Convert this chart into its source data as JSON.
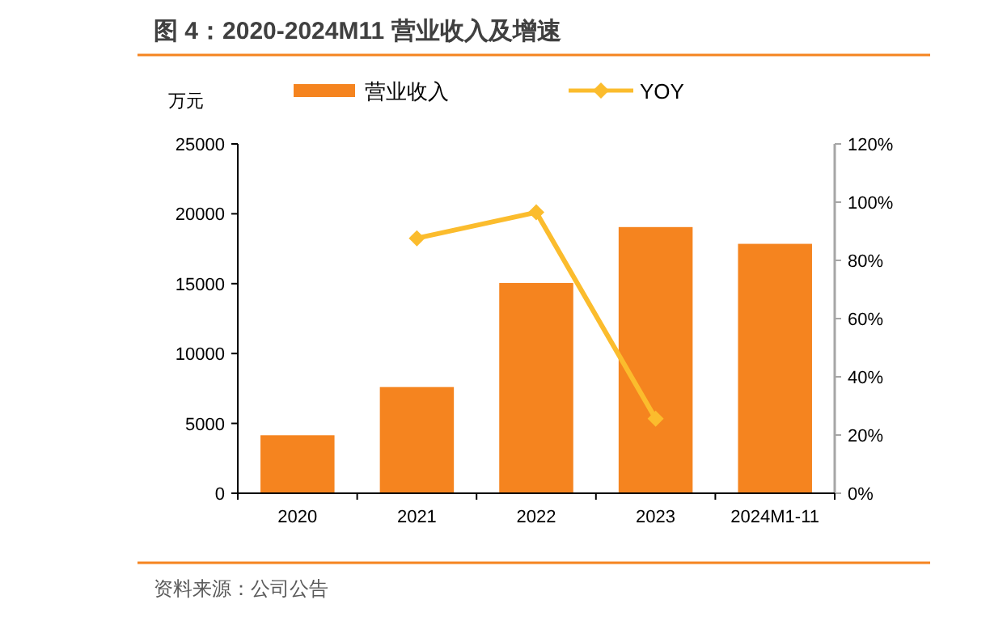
{
  "chart_data": {
    "type": "bar",
    "title": "图 4：2020-2024M11 营业收入及增速",
    "ylabel": "万元",
    "categories": [
      "2020",
      "2021",
      "2022",
      "2023",
      "2024M1-11"
    ],
    "series": [
      {
        "name": "营业收入",
        "color": "#f5841f",
        "values": [
          4150,
          7600,
          15050,
          19050,
          17850
        ]
      },
      {
        "name": "YOY",
        "type": "line",
        "axis": "y2",
        "color": "#fbbc2d",
        "values": [
          null,
          87.6,
          96.5,
          25.6,
          null
        ]
      }
    ],
    "ylim": [
      0,
      25000
    ],
    "yticks": [
      0,
      5000,
      10000,
      15000,
      20000,
      25000
    ],
    "y2lim": [
      0,
      120
    ],
    "y2ticks": [
      {
        "value": 0,
        "label": "0%"
      },
      {
        "value": 20,
        "label": "20%"
      },
      {
        "value": 40,
        "label": "40%"
      },
      {
        "value": 60,
        "label": "60%"
      },
      {
        "value": 80,
        "label": "80%"
      },
      {
        "value": 100,
        "label": "100%"
      },
      {
        "value": 120,
        "label": "120%"
      }
    ],
    "marker": "diamond",
    "legend": "top",
    "grid": false,
    "annotations": [
      "资料来源：公司公告"
    ]
  }
}
